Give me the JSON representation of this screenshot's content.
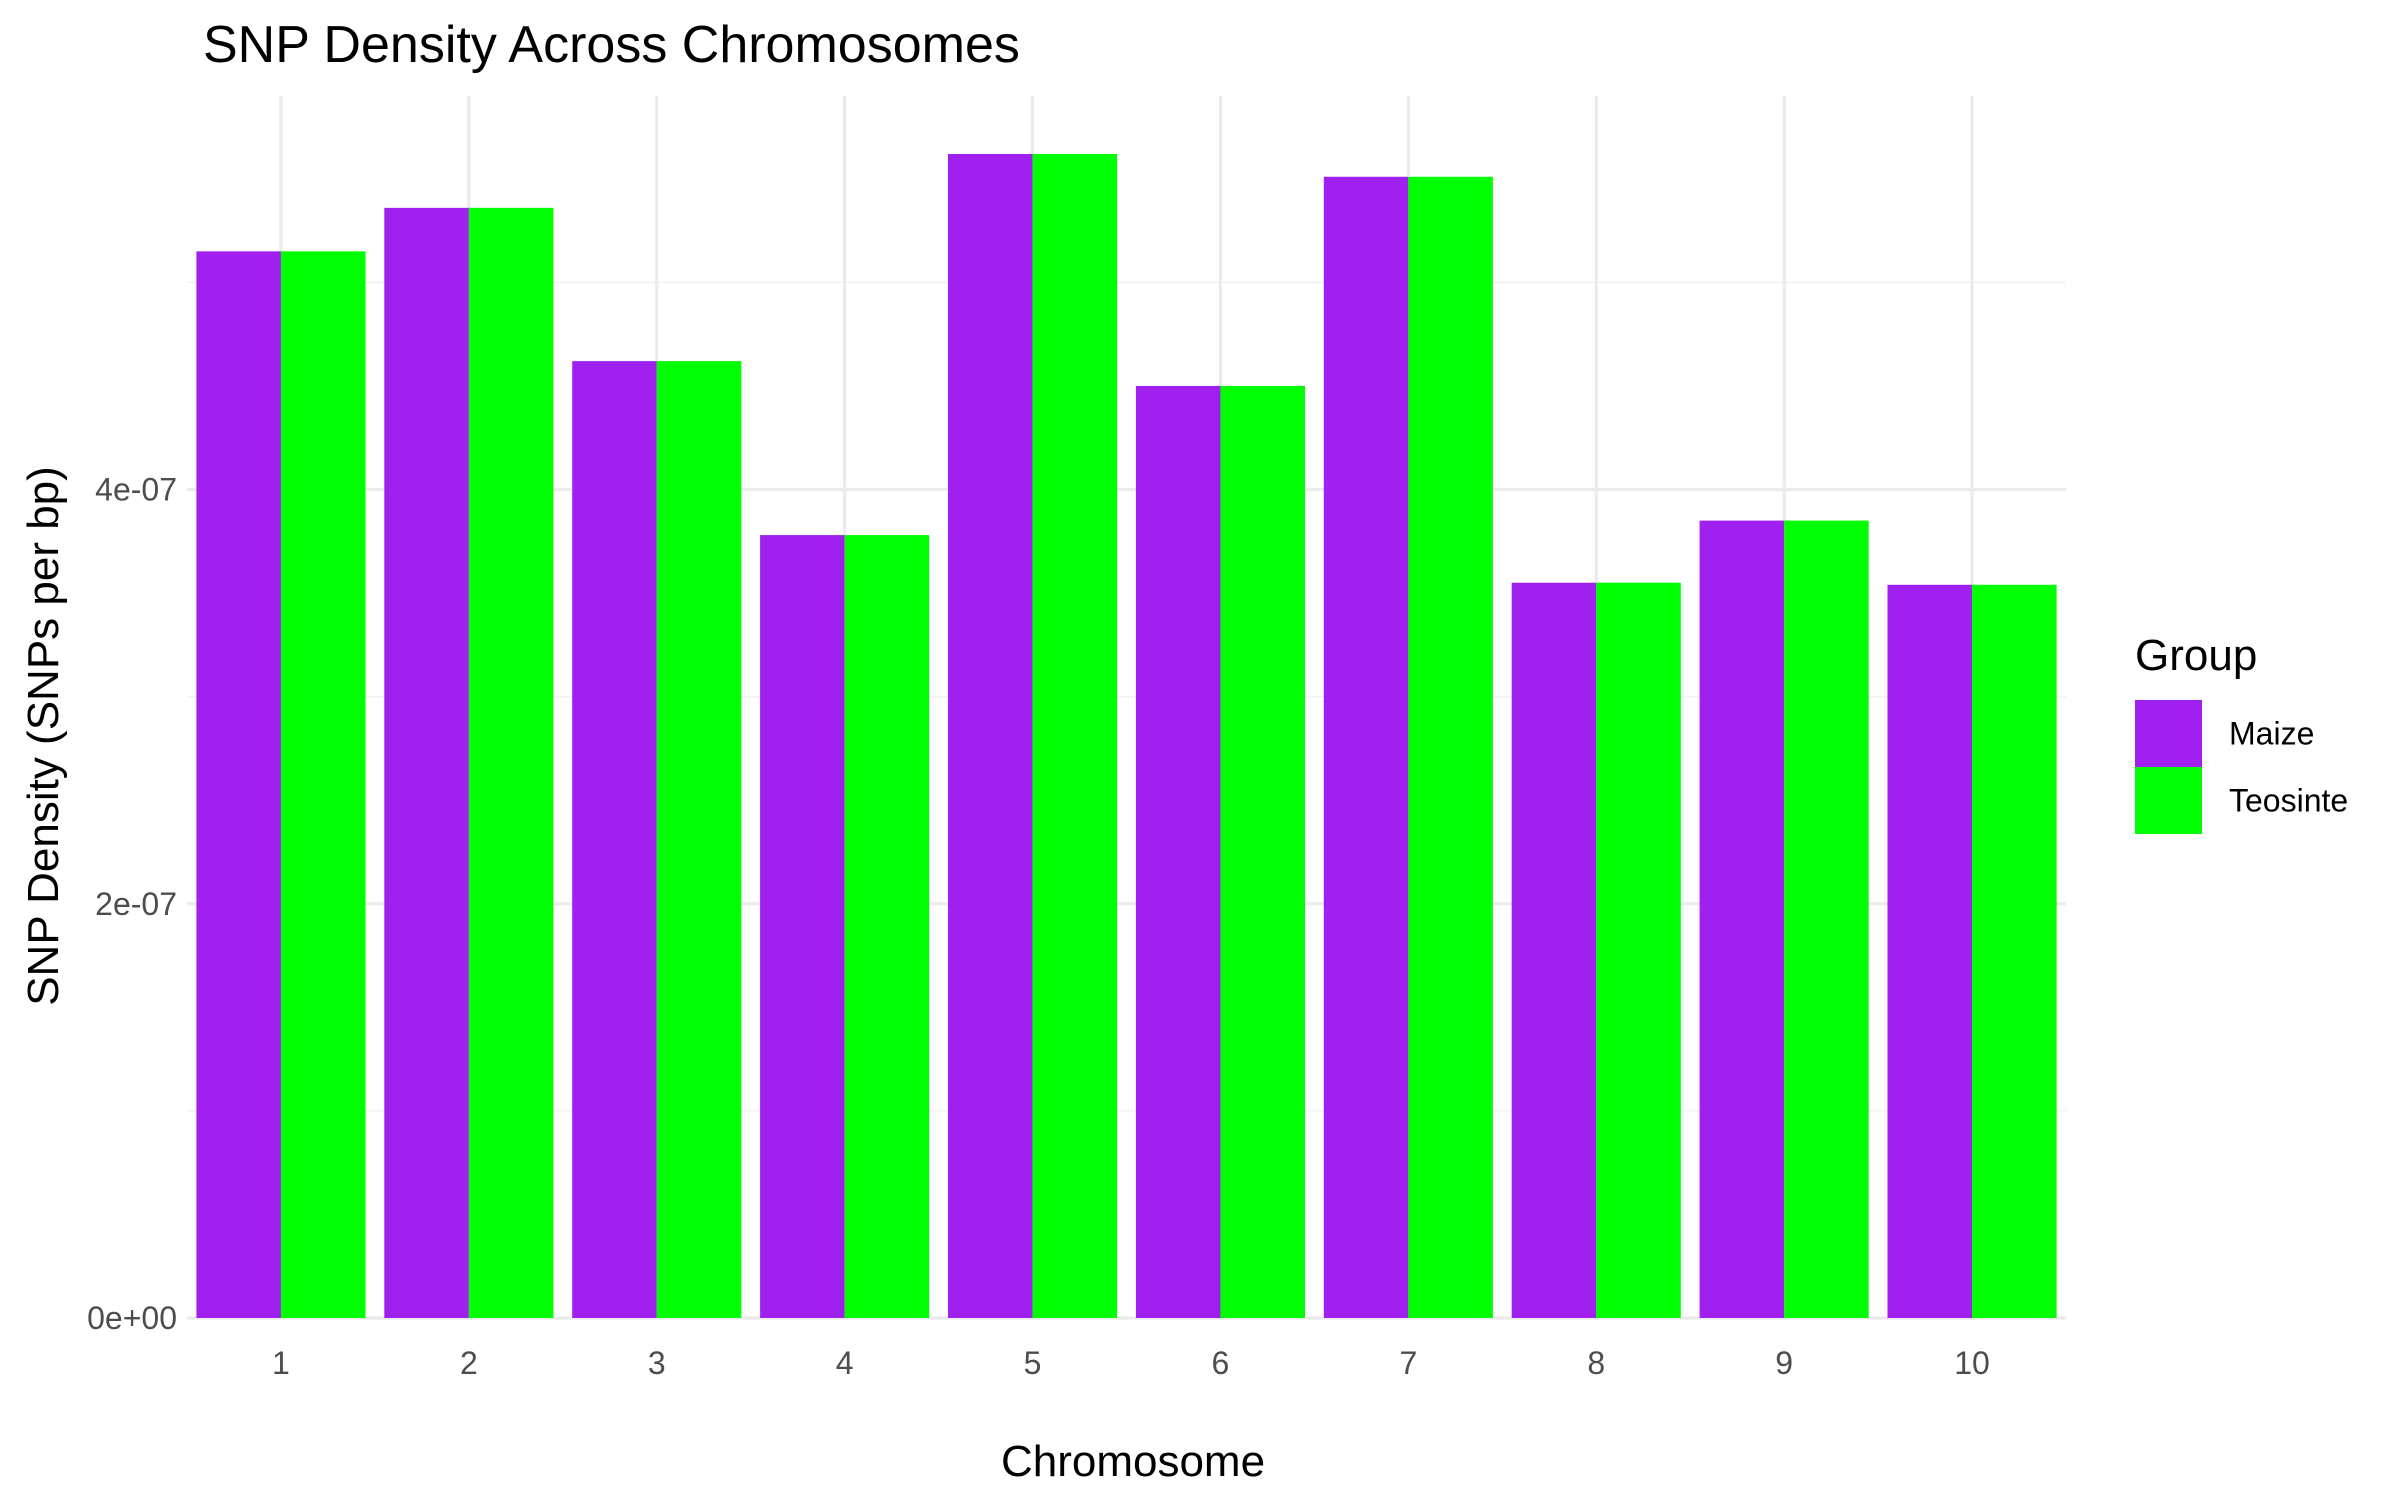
{
  "chart_data": {
    "type": "bar",
    "title": "SNP Density Across Chromosomes",
    "xlabel": "Chromosome",
    "ylabel": "SNP Density (SNPs per bp)",
    "categories": [
      "1",
      "2",
      "3",
      "4",
      "5",
      "6",
      "7",
      "8",
      "9",
      "10"
    ],
    "series": [
      {
        "name": "Maize",
        "color": "#a020f0",
        "values": [
          5.15e-07,
          5.36e-07,
          4.62e-07,
          3.78e-07,
          5.62e-07,
          4.5e-07,
          5.51e-07,
          3.55e-07,
          3.85e-07,
          3.54e-07
        ]
      },
      {
        "name": "Teosinte",
        "color": "#00ff00",
        "values": [
          5.15e-07,
          5.36e-07,
          4.62e-07,
          3.78e-07,
          5.62e-07,
          4.5e-07,
          5.51e-07,
          3.55e-07,
          3.85e-07,
          3.54e-07
        ]
      }
    ],
    "ylim": [
      0,
      5.9e-07
    ],
    "y_ticks": [
      0,
      2e-07,
      4e-07
    ],
    "y_tick_labels": [
      "0e+00",
      "2e-07",
      "4e-07"
    ],
    "y_minor_ticks": [
      1e-07,
      3e-07,
      5e-07
    ],
    "grid": true,
    "legend": {
      "title": "Group",
      "placement": "right"
    }
  }
}
